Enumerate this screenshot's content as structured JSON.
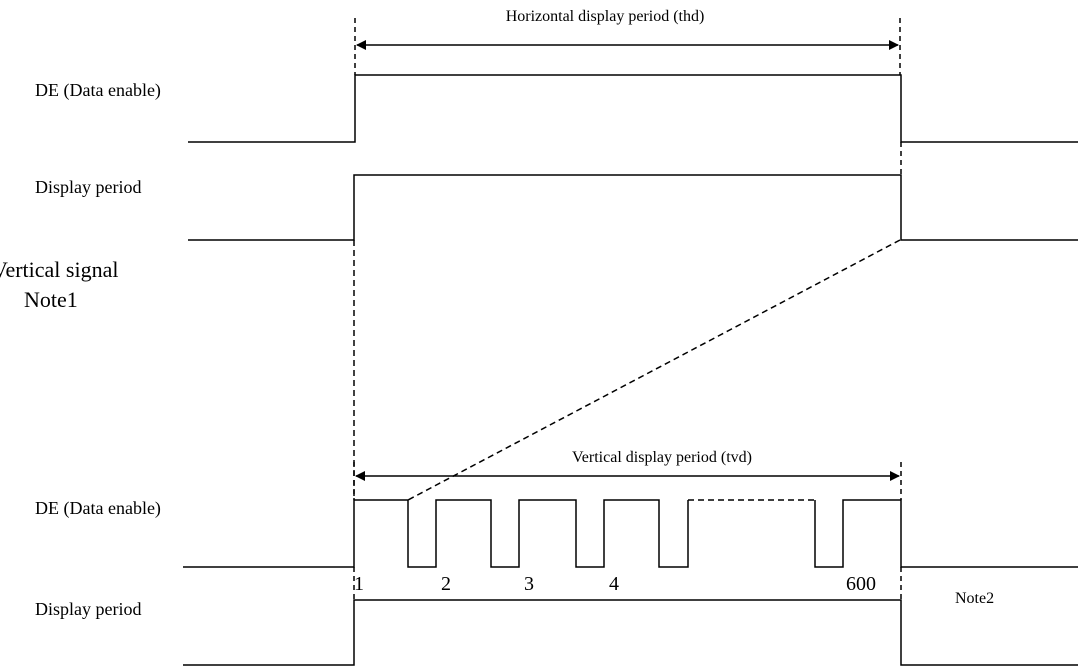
{
  "horizontal": {
    "period_label": "Horizontal display period (thd)",
    "de_label": "DE (Data enable)",
    "display_label": "Display period"
  },
  "vertical": {
    "signal_label": "Vertical signal",
    "note_label": "Note1",
    "period_label": "Vertical display period (tvd)",
    "de_label": "DE (Data enable)",
    "display_label": "Display period",
    "line_numbers": [
      "1",
      "2",
      "3",
      "4",
      "600"
    ],
    "end_note": "Note2"
  },
  "colors": {
    "stroke": "#000000",
    "background": "#ffffff"
  }
}
